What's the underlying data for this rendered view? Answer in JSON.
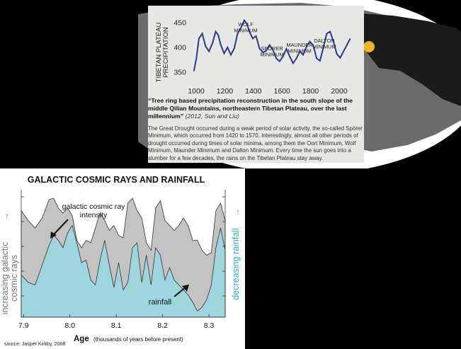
{
  "colors": {
    "map_land": "#6b6b6b",
    "map_land_dark": "#1b1b1b",
    "ocean": "#ffffff",
    "card_bg": "#e7e7e3",
    "precip_line": "#283a8c",
    "cosmic_fill": "#c3c3c3",
    "rain_fill": "#9fd6dd",
    "rain_text": "#2bb3bf",
    "marker": "#f0b323"
  },
  "top_card": {
    "caption_title": "“Tree ring based precipitation reconstruction in the south slope of the middle Qilian Mountains, northeastern Tibetan Plateau, over the last millennium”",
    "caption_cite": "(2012, Sun and Liu)",
    "body": "The Great Drought occurred during a weak period of solar activity, the so-called Spörer Minimum, which occurred from 1420 to 1570. Interestingly, almost all other periods of drought occurred during times of solar minima, among them the Oort Minimum, Wolf Minimum, Maunder Minimum and Dalton Minimum. Every time the sun goes into a slumber for a few decades, the rains on the Tibetan Plateau stay away."
  },
  "bottom_card": {
    "source": "source: Jasper Kirkby, 2008"
  },
  "chart_data": [
    {
      "type": "line",
      "title": "",
      "xlabel": "",
      "ylabel": "TIBETAN PLATEAU PRECIPITATION",
      "xlim": [
        1050,
        2010
      ],
      "ylim": [
        330,
        470
      ],
      "xticks": [
        1000,
        1200,
        1400,
        1600,
        1800,
        2000
      ],
      "yticks": [
        350,
        400,
        450
      ],
      "x": [
        1070,
        1085,
        1100,
        1120,
        1140,
        1160,
        1180,
        1200,
        1215,
        1230,
        1250,
        1270,
        1290,
        1310,
        1330,
        1350,
        1370,
        1385,
        1400,
        1420,
        1440,
        1460,
        1480,
        1500,
        1520,
        1540,
        1560,
        1580,
        1600,
        1620,
        1640,
        1660,
        1680,
        1700,
        1720,
        1740,
        1760,
        1780,
        1800,
        1820,
        1840,
        1860,
        1880,
        1900,
        1920,
        1940,
        1960,
        1980,
        2000
      ],
      "values": [
        352,
        378,
        418,
        428,
        402,
        392,
        408,
        432,
        425,
        405,
        388,
        400,
        385,
        398,
        428,
        440,
        455,
        448,
        432,
        418,
        423,
        398,
        390,
        393,
        405,
        395,
        378,
        372,
        382,
        397,
        382,
        368,
        378,
        392,
        385,
        402,
        412,
        404,
        378,
        373,
        400,
        428,
        432,
        412,
        387,
        379,
        392,
        405,
        418
      ],
      "annotations": [
        "WOLF MINIMUM",
        "SPÓRER MINIMUM",
        "MAUNDER MINIMUM",
        "DALTON MINIMUM"
      ],
      "grid": false
    },
    {
      "type": "area",
      "title": "GALACTIC COSMIC RAYS AND RAINFALL",
      "xlabel": "Age",
      "xlabel_note": "(thousands of years before present)",
      "ylabel_left": "increasing galactic cosmic rays",
      "ylabel_right": "decreasing rainfall",
      "xlim": [
        7.895,
        8.335
      ],
      "xticks": [
        7.9,
        8.0,
        8.1,
        8.2,
        8.3
      ],
      "ylim": [
        0,
        1
      ],
      "x": [
        7.895,
        7.91,
        7.925,
        7.94,
        7.955,
        7.965,
        7.975,
        7.985,
        7.995,
        8.005,
        8.015,
        8.025,
        8.035,
        8.045,
        8.055,
        8.065,
        8.075,
        8.085,
        8.095,
        8.105,
        8.115,
        8.125,
        8.135,
        8.145,
        8.155,
        8.165,
        8.175,
        8.185,
        8.195,
        8.205,
        8.215,
        8.225,
        8.235,
        8.245,
        8.255,
        8.265,
        8.275,
        8.285,
        8.295,
        8.305,
        8.315,
        8.325,
        8.335
      ],
      "series": [
        {
          "name": "galactic cosmic ray intensity",
          "values": [
            0.86,
            0.78,
            0.72,
            0.8,
            0.95,
            0.96,
            0.88,
            0.84,
            0.88,
            0.82,
            0.62,
            0.56,
            0.62,
            0.6,
            0.72,
            0.84,
            0.78,
            0.7,
            0.74,
            0.66,
            0.64,
            0.92,
            0.96,
            0.86,
            0.8,
            0.6,
            0.54,
            0.88,
            0.94,
            0.78,
            0.74,
            0.7,
            0.74,
            0.8,
            0.74,
            0.62,
            0.62,
            0.54,
            0.5,
            0.52,
            0.86,
            0.92,
            0.78
          ]
        },
        {
          "name": "rainfall",
          "values": [
            0.34,
            0.28,
            0.26,
            0.42,
            0.58,
            0.66,
            0.62,
            0.56,
            0.68,
            0.74,
            0.6,
            0.44,
            0.46,
            0.3,
            0.26,
            0.46,
            0.62,
            0.42,
            0.24,
            0.44,
            0.22,
            0.28,
            0.56,
            0.6,
            0.28,
            0.5,
            0.26,
            0.56,
            0.5,
            0.3,
            0.4,
            0.3,
            0.26,
            0.22,
            0.18,
            0.12,
            0.05,
            0.08,
            0.14,
            0.26,
            0.56,
            0.72,
            0.54
          ]
        }
      ],
      "annotations": [
        "galactic cosmic ray intensity",
        "rainfall"
      ],
      "grid": false
    }
  ]
}
